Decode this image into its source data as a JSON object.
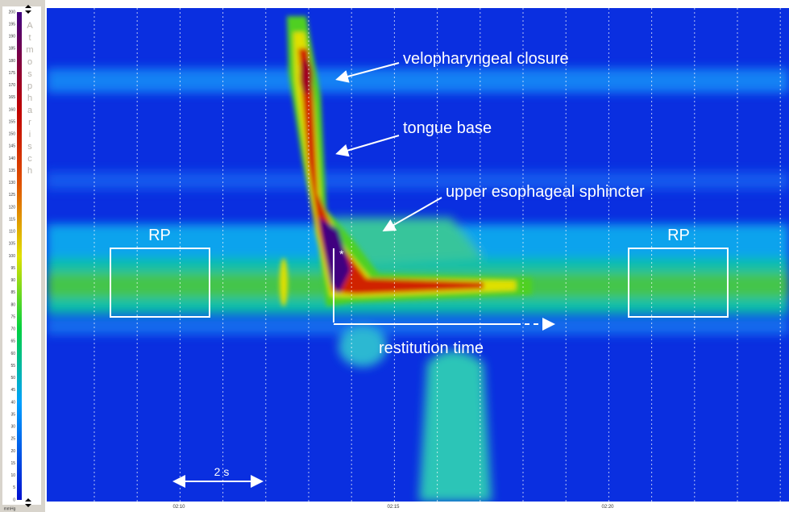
{
  "colorbar": {
    "ticks": [
      0,
      5,
      10,
      15,
      20,
      25,
      30,
      35,
      40,
      45,
      50,
      55,
      60,
      65,
      70,
      75,
      80,
      85,
      90,
      95,
      100,
      105,
      110,
      115,
      120,
      125,
      130,
      135,
      140,
      145,
      150,
      155,
      160,
      165,
      170,
      175,
      180,
      185,
      190,
      195,
      200
    ],
    "unit": "mmHg",
    "label": "Atmospharisch"
  },
  "time_axis": {
    "labels": [
      "02:10",
      "02:15",
      "02:20"
    ]
  },
  "annotations": {
    "velopharyngeal": "velopharyngeal closure",
    "tongue_base": "tongue base",
    "ues": "upper esophageal sphincter",
    "rp_left": "RP",
    "rp_right": "RP",
    "star": "*",
    "restitution": "restitution time",
    "scale": "2 s"
  }
}
